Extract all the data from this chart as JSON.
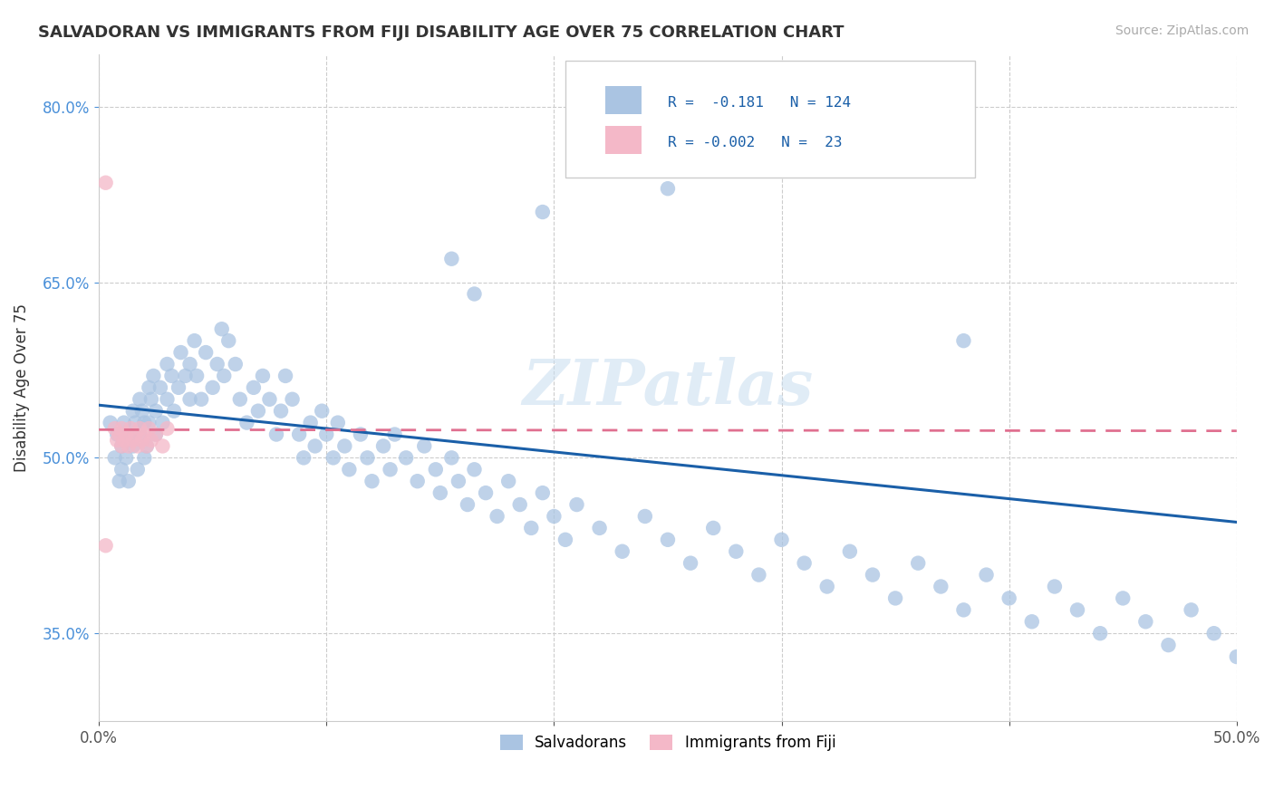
{
  "title": "SALVADORAN VS IMMIGRANTS FROM FIJI DISABILITY AGE OVER 75 CORRELATION CHART",
  "source": "Source: ZipAtlas.com",
  "ylabel": "Disability Age Over 75",
  "x_min": 0.0,
  "x_max": 0.5,
  "y_min": 0.275,
  "y_max": 0.845,
  "x_ticks": [
    0.0,
    0.1,
    0.2,
    0.3,
    0.4,
    0.5
  ],
  "y_ticks": [
    0.35,
    0.5,
    0.65,
    0.8
  ],
  "salvadoran_color": "#aac4e2",
  "fiji_color": "#f4b8c8",
  "trend_blue": "#1a5fa8",
  "trend_pink": "#e07090",
  "watermark": "ZIPatlas",
  "legend_label_1": "Salvadorans",
  "legend_label_2": "Immigrants from Fiji",
  "blue_trend_x0": 0.0,
  "blue_trend_y0": 0.545,
  "blue_trend_x1": 0.5,
  "blue_trend_y1": 0.445,
  "pink_trend_x0": 0.0,
  "pink_trend_y0": 0.524,
  "pink_trend_x1": 0.5,
  "pink_trend_y1": 0.523,
  "blue_x": [
    0.005,
    0.007,
    0.008,
    0.009,
    0.01,
    0.01,
    0.011,
    0.012,
    0.013,
    0.013,
    0.015,
    0.015,
    0.016,
    0.017,
    0.018,
    0.018,
    0.019,
    0.02,
    0.02,
    0.021,
    0.022,
    0.022,
    0.023,
    0.024,
    0.025,
    0.025,
    0.027,
    0.028,
    0.03,
    0.03,
    0.032,
    0.033,
    0.035,
    0.036,
    0.038,
    0.04,
    0.04,
    0.042,
    0.043,
    0.045,
    0.047,
    0.05,
    0.052,
    0.054,
    0.055,
    0.057,
    0.06,
    0.062,
    0.065,
    0.068,
    0.07,
    0.072,
    0.075,
    0.078,
    0.08,
    0.082,
    0.085,
    0.088,
    0.09,
    0.093,
    0.095,
    0.098,
    0.1,
    0.103,
    0.105,
    0.108,
    0.11,
    0.115,
    0.118,
    0.12,
    0.125,
    0.128,
    0.13,
    0.135,
    0.14,
    0.143,
    0.148,
    0.15,
    0.155,
    0.158,
    0.162,
    0.165,
    0.17,
    0.175,
    0.18,
    0.185,
    0.19,
    0.195,
    0.2,
    0.205,
    0.21,
    0.22,
    0.23,
    0.24,
    0.25,
    0.26,
    0.27,
    0.28,
    0.29,
    0.3,
    0.31,
    0.32,
    0.33,
    0.34,
    0.35,
    0.36,
    0.37,
    0.38,
    0.39,
    0.4,
    0.41,
    0.42,
    0.43,
    0.44,
    0.45,
    0.46,
    0.47,
    0.48,
    0.49,
    0.5,
    0.195,
    0.25,
    0.155,
    0.38,
    0.165
  ],
  "blue_y": [
    0.53,
    0.5,
    0.52,
    0.48,
    0.51,
    0.49,
    0.53,
    0.5,
    0.52,
    0.48,
    0.54,
    0.51,
    0.53,
    0.49,
    0.55,
    0.52,
    0.54,
    0.5,
    0.53,
    0.51,
    0.56,
    0.53,
    0.55,
    0.57,
    0.54,
    0.52,
    0.56,
    0.53,
    0.58,
    0.55,
    0.57,
    0.54,
    0.56,
    0.59,
    0.57,
    0.55,
    0.58,
    0.6,
    0.57,
    0.55,
    0.59,
    0.56,
    0.58,
    0.61,
    0.57,
    0.6,
    0.58,
    0.55,
    0.53,
    0.56,
    0.54,
    0.57,
    0.55,
    0.52,
    0.54,
    0.57,
    0.55,
    0.52,
    0.5,
    0.53,
    0.51,
    0.54,
    0.52,
    0.5,
    0.53,
    0.51,
    0.49,
    0.52,
    0.5,
    0.48,
    0.51,
    0.49,
    0.52,
    0.5,
    0.48,
    0.51,
    0.49,
    0.47,
    0.5,
    0.48,
    0.46,
    0.49,
    0.47,
    0.45,
    0.48,
    0.46,
    0.44,
    0.47,
    0.45,
    0.43,
    0.46,
    0.44,
    0.42,
    0.45,
    0.43,
    0.41,
    0.44,
    0.42,
    0.4,
    0.43,
    0.41,
    0.39,
    0.42,
    0.4,
    0.38,
    0.41,
    0.39,
    0.37,
    0.4,
    0.38,
    0.36,
    0.39,
    0.37,
    0.35,
    0.38,
    0.36,
    0.34,
    0.37,
    0.35,
    0.33,
    0.71,
    0.73,
    0.67,
    0.6,
    0.64
  ],
  "pink_x": [
    0.003,
    0.007,
    0.008,
    0.009,
    0.01,
    0.01,
    0.011,
    0.012,
    0.013,
    0.014,
    0.015,
    0.016,
    0.017,
    0.018,
    0.019,
    0.02,
    0.021,
    0.022,
    0.023,
    0.025,
    0.028,
    0.03,
    0.003
  ],
  "pink_y": [
    0.735,
    0.525,
    0.515,
    0.52,
    0.51,
    0.525,
    0.515,
    0.52,
    0.51,
    0.525,
    0.515,
    0.52,
    0.51,
    0.525,
    0.515,
    0.52,
    0.51,
    0.525,
    0.515,
    0.52,
    0.51,
    0.525,
    0.425
  ]
}
